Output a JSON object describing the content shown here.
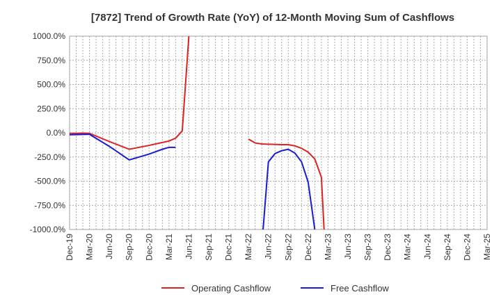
{
  "chart_data": {
    "type": "line",
    "title": "[7872]  Trend of Growth Rate (YoY) of 12-Month Moving Sum of Cashflows",
    "xlabel": "",
    "ylabel": "",
    "ylim": [
      -1000,
      1000
    ],
    "yticks": [
      1000,
      750,
      500,
      250,
      0,
      -250,
      -500,
      -750,
      -1000
    ],
    "ytick_labels": [
      "1000.0%",
      "750.0%",
      "500.0%",
      "250.0%",
      "0.0%",
      "-250.0%",
      "-500.0%",
      "-750.0%",
      "-1000.0%"
    ],
    "x_range": [
      "2019-12",
      "2025-03"
    ],
    "x_tick_labels": [
      "Dec-19",
      "Mar-20",
      "Jun-20",
      "Sep-20",
      "Dec-20",
      "Mar-21",
      "Jun-21",
      "Sep-21",
      "Dec-21",
      "Mar-22",
      "Jun-22",
      "Sep-22",
      "Dec-22",
      "Mar-23",
      "Jun-23",
      "Sep-23",
      "Dec-23",
      "Mar-24",
      "Jun-24",
      "Sep-24",
      "Dec-24",
      "Mar-25"
    ],
    "grid": true,
    "legend_position": "bottom",
    "series": [
      {
        "name": "Operating Cashflow",
        "color": "#dd2222",
        "points": [
          [
            "2019-12",
            -5
          ],
          [
            "2020-01",
            -5
          ],
          [
            "2020-02",
            -3
          ],
          [
            "2020-03",
            -5
          ],
          [
            "2020-06",
            -90
          ],
          [
            "2020-09",
            -170
          ],
          [
            "2020-12",
            -130
          ],
          [
            "2021-02",
            -100
          ],
          [
            "2021-03",
            -85
          ],
          [
            "2021-04",
            -55
          ],
          [
            "2021-05",
            20
          ],
          [
            "2021-06",
            1000
          ]
        ],
        "break_after": true,
        "points_2": [
          [
            "2022-03",
            -65
          ],
          [
            "2022-04",
            -105
          ],
          [
            "2022-05",
            -115
          ],
          [
            "2022-06",
            -118
          ],
          [
            "2022-07",
            -120
          ],
          [
            "2022-08",
            -122
          ],
          [
            "2022-09",
            -122
          ],
          [
            "2022-10",
            -135
          ],
          [
            "2022-11",
            -160
          ],
          [
            "2022-12",
            -200
          ],
          [
            "2023-01",
            -270
          ],
          [
            "2023-02",
            -460
          ],
          [
            "2023-02.4",
            -1000
          ]
        ]
      },
      {
        "name": "Free Cashflow",
        "color": "#1a1ad0",
        "points": [
          [
            "2019-12",
            -20
          ],
          [
            "2020-03",
            -15
          ],
          [
            "2020-06",
            -140
          ],
          [
            "2020-09",
            -280
          ],
          [
            "2020-12",
            -220
          ],
          [
            "2021-02",
            -170
          ],
          [
            "2021-03",
            -150
          ],
          [
            "2021-04",
            -150
          ]
        ],
        "break_after": true,
        "points_2": [
          [
            "2022-05.2",
            -1000
          ],
          [
            "2022-06",
            -300
          ],
          [
            "2022-07",
            -215
          ],
          [
            "2022-08",
            -185
          ],
          [
            "2022-09",
            -170
          ],
          [
            "2022-10",
            -210
          ],
          [
            "2022-11",
            -300
          ],
          [
            "2022-12",
            -510
          ],
          [
            "2023-01",
            -1000
          ]
        ]
      }
    ]
  }
}
